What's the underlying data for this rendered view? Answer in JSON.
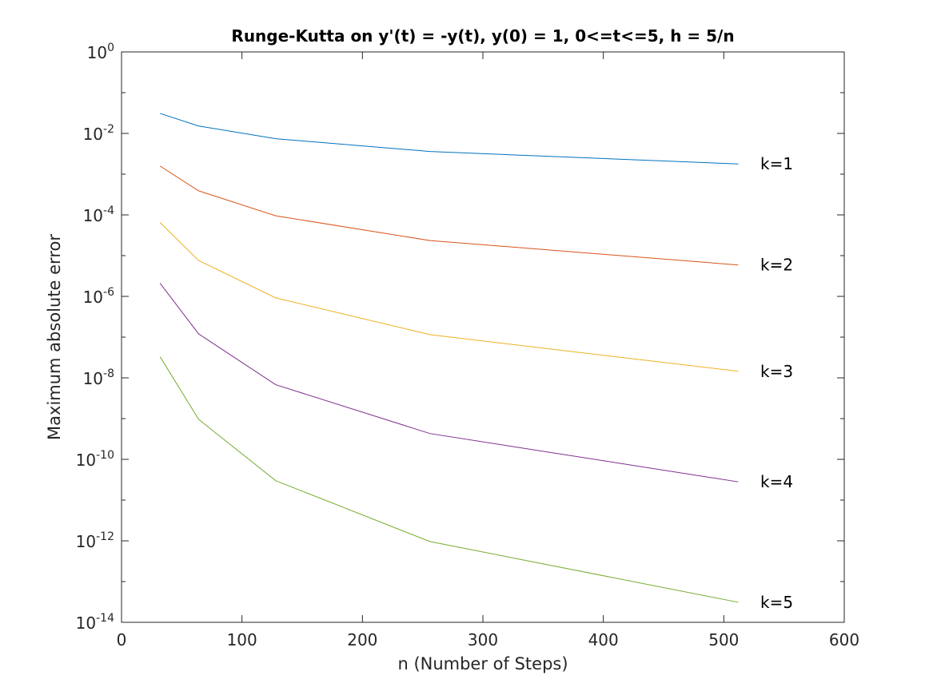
{
  "chart_data": {
    "type": "line",
    "title": "Runge-Kutta on y'(t) = -y(t), y(0) = 1, 0<=t<=5, h = 5/n",
    "xlabel": "n (Number of Steps)",
    "ylabel": "Maximum absolute error",
    "xlim": [
      0,
      600
    ],
    "ylim": [
      1e-14,
      1
    ],
    "yscale": "log",
    "grid": false,
    "box": true,
    "x_ticks": [
      "0",
      "100",
      "200",
      "300",
      "400",
      "500",
      "600"
    ],
    "y_ticks": [
      {
        "base": "10",
        "exp": "0"
      },
      {
        "base": "10",
        "exp": "-2"
      },
      {
        "base": "10",
        "exp": "-4"
      },
      {
        "base": "10",
        "exp": "-6"
      },
      {
        "base": "10",
        "exp": "-8"
      },
      {
        "base": "10",
        "exp": "-10"
      },
      {
        "base": "10",
        "exp": "-12"
      },
      {
        "base": "10",
        "exp": "-14"
      }
    ],
    "x": [
      32,
      64,
      128,
      256,
      512
    ],
    "series": [
      {
        "name": "k=1",
        "color": "#0072BD",
        "values": [
          0.031,
          0.0152,
          0.0074,
          0.0036,
          0.00178
        ]
      },
      {
        "name": "k=2",
        "color": "#D95319",
        "values": [
          0.00158,
          0.00039,
          9.5e-05,
          2.35e-05,
          5.9e-06
        ]
      },
      {
        "name": "k=3",
        "color": "#EDB120",
        "values": [
          6.5e-05,
          7.6e-06,
          9.2e-07,
          1.15e-07,
          1.45e-08
        ]
      },
      {
        "name": "k=4",
        "color": "#7E2F8E",
        "values": [
          2.1e-06,
          1.2e-07,
          6.8e-09,
          4.3e-10,
          2.8e-11
        ]
      },
      {
        "name": "k=5",
        "color": "#77AC30",
        "values": [
          3.3e-08,
          9.6e-10,
          3e-11,
          9.6e-13,
          3.1e-14
        ]
      }
    ]
  }
}
